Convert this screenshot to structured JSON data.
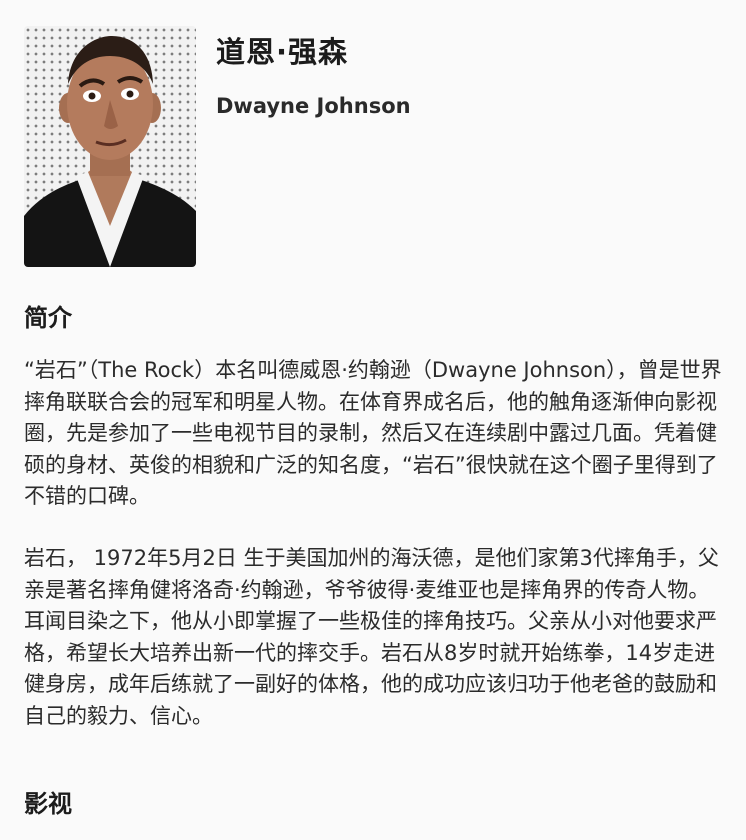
{
  "profile": {
    "name_cn": "道恩·强森",
    "name_en": "Dwayne Johnson",
    "photo_icon": "portrait-photo"
  },
  "sections": {
    "intro_title": "简介",
    "media_title": "影视"
  },
  "intro": {
    "paragraph1": "“岩石”（The Rock）本名叫德威恩·约翰逊（Dwayne Johnson），曾是世界摔角联联合会的冠军和明星人物。在体育界成名后，他的触角逐渐伸向影视圈，先是参加了一些电视节目的录制，然后又在连续剧中露过几面。凭着健硕的身材、英俊的相貌和广泛的知名度，“岩石”很快就在这个圈子里得到了不错的口碑。",
    "paragraph2": "岩石， 1972年5月2日 生于美国加州的海沃德，是他们家第3代摔角手，父亲是著名摔角健将洛奇·约翰逊，爷爷彼得·麦维亚也是摔角界的传奇人物。耳闻目染之下，他从小即掌握了一些极佳的摔角技巧。父亲从小对他要求严格，希望长大培养出新一代的摔交手。岩石从8岁时就开始练拳，14岁走进健身房，成年后练就了一副好的体格，他的成功应该归功于他老爸的鼓励和自己的毅力、信心。"
  }
}
